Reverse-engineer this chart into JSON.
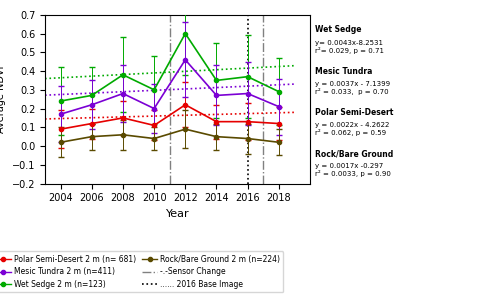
{
  "years": [
    2003,
    2004,
    2006,
    2008,
    2010,
    2011,
    2012,
    2014,
    2016,
    2017,
    2018,
    2019
  ],
  "plot_years": [
    2004,
    2006,
    2008,
    2010,
    2012,
    2014,
    2016,
    2018
  ],
  "polar_semi_desert": [
    0.09,
    0.12,
    0.15,
    0.11,
    0.22,
    0.13,
    0.13,
    0.12
  ],
  "polar_sd_err": [
    0.1,
    0.08,
    0.09,
    0.08,
    0.12,
    0.09,
    0.1,
    0.09
  ],
  "wet_sedge": [
    0.24,
    0.27,
    0.38,
    0.3,
    0.6,
    0.35,
    0.37,
    0.29
  ],
  "wet_sd_err": [
    0.18,
    0.15,
    0.2,
    0.18,
    0.22,
    0.2,
    0.22,
    0.18
  ],
  "mesic_tundra": [
    0.17,
    0.22,
    0.28,
    0.2,
    0.46,
    0.27,
    0.28,
    0.21
  ],
  "mesic_sd_err": [
    0.15,
    0.13,
    0.15,
    0.13,
    0.2,
    0.16,
    0.17,
    0.15
  ],
  "rock_bare_ground": [
    0.02,
    0.05,
    0.06,
    0.04,
    0.09,
    0.05,
    0.04,
    0.02
  ],
  "rock_sd_err": [
    0.08,
    0.07,
    0.08,
    0.06,
    0.1,
    0.07,
    0.08,
    0.07
  ],
  "trend_years_range": [
    2003,
    2019
  ],
  "polar_trend": {
    "slope": 0.0022,
    "intercept": -4.2622
  },
  "wet_trend": {
    "slope": 0.0043,
    "intercept": -8.2531
  },
  "mesic_trend": {
    "slope": 0.0037,
    "intercept": -7.1399
  },
  "rock_trend": {
    "slope": 0.0017,
    "intercept": -0.297
  },
  "sensor_change_years": [
    2011,
    2017
  ],
  "base_image_year": 2016,
  "colors": {
    "polar": "#e60000",
    "wet": "#00aa00",
    "mesic": "#7b00d4",
    "rock": "#5a4a00",
    "polar_trend": "#ff6666",
    "wet_trend": "#00cc00",
    "mesic_trend": "#cc66ff",
    "rock_trend": "#999900"
  },
  "annotations": {
    "wet_sedge": "Wet Sedge\ny= 0.0043x-8.2531\nr²= 0.029, p = 0.71",
    "mesic_tundra": "Mesic Tundra\ny = 0.0037x - 7.1399\nr² = 0.033,  p = 0.70",
    "polar_semi_desert": "Polar Semi-Desert\ny = 0.0022x - 4.2622\nr² = 0.062, p = 0.59",
    "rock_bare_ground": "Rock/Bare Ground\ny = 0.0017x -0.297\nr² = 0.0033, p = 0.90"
  },
  "ylim": [
    -0.2,
    0.7
  ],
  "yticks": [
    -0.2,
    -0.1,
    0.0,
    0.1,
    0.2,
    0.3,
    0.4,
    0.5,
    0.6,
    0.7
  ],
  "xticks": [
    2004,
    2006,
    2008,
    2010,
    2012,
    2014,
    2016,
    2018
  ],
  "xlabel": "Year",
  "ylabel": "Average NDVI",
  "title": ""
}
